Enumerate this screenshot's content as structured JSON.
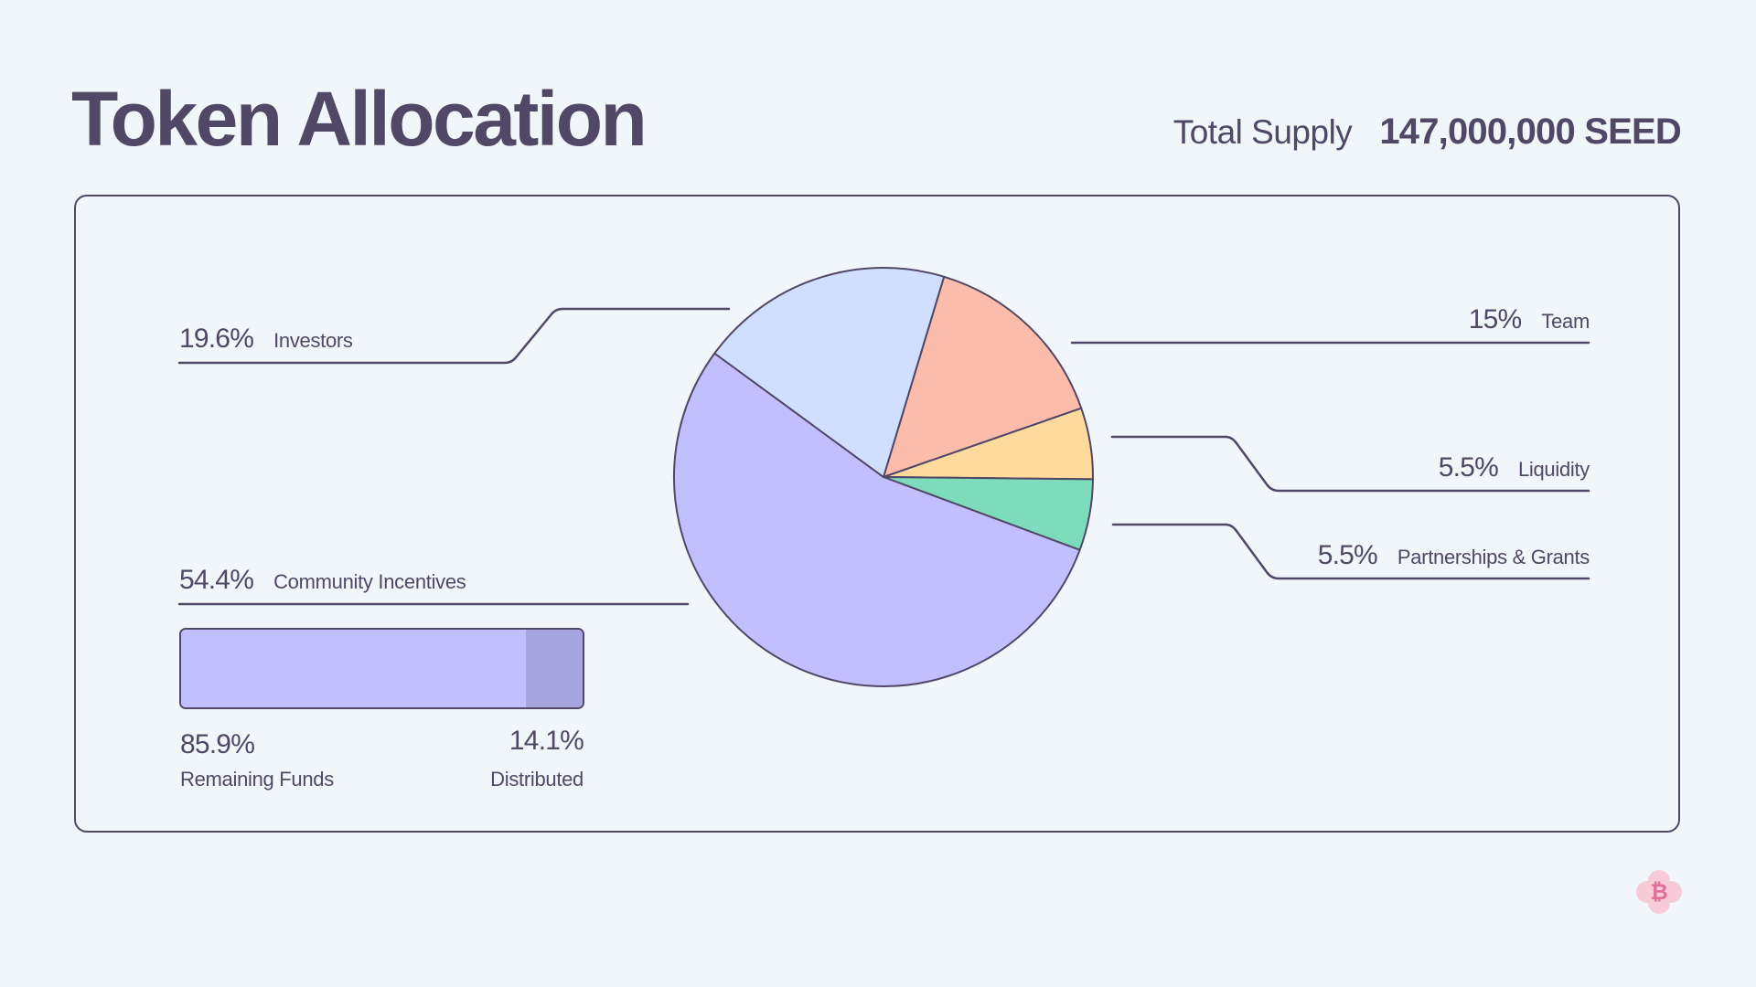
{
  "header": {
    "title": "Token Allocation",
    "total_supply_label": "Total Supply",
    "total_supply_value": "147,000,000 SEED"
  },
  "colors": {
    "text": "#514766",
    "background": "#f1f6fb",
    "community": "#c1bffd",
    "investors": "#d0dffe",
    "team": "#fcbcab",
    "liquidity": "#feda9c",
    "partnerships": "#7ddcbc",
    "distributed": "#a7a5e0",
    "logo_bg": "#f8cbd8",
    "logo_fg": "#e0709a"
  },
  "labels": {
    "investors": {
      "pct": "19.6%",
      "name": "Investors"
    },
    "team": {
      "pct": "15%",
      "name": "Team"
    },
    "liquidity": {
      "pct": "5.5%",
      "name": "Liquidity"
    },
    "partnerships": {
      "pct": "5.5%",
      "name": "Partnerships & Grants"
    },
    "community": {
      "pct": "54.4%",
      "name": "Community Incentives"
    }
  },
  "community_progress": {
    "remaining_pct": "85.9%",
    "remaining_label": "Remaining Funds",
    "distributed_pct": "14.1%",
    "distributed_label": "Distributed"
  },
  "logo": {
    "icon": "bitcoin-icon",
    "glyph": "₿"
  },
  "chart_data": {
    "type": "pie",
    "title": "Token Allocation",
    "subtitle": "Total Supply 147,000,000 SEED",
    "categories": [
      "Team",
      "Liquidity",
      "Partnerships & Grants",
      "Community Incentives",
      "Investors"
    ],
    "values": [
      15,
      5.5,
      5.5,
      54.4,
      19.6
    ],
    "colors": [
      "#fcbcab",
      "#feda9c",
      "#7ddcbc",
      "#c1bffd",
      "#d0dffe"
    ],
    "start_angle_deg": 16.8,
    "direction": "clockwise",
    "legend": "callout labels",
    "sub_chart": {
      "type": "bar",
      "title": "Community Incentives",
      "categories": [
        "Remaining Funds",
        "Distributed"
      ],
      "values": [
        85.9,
        14.1
      ],
      "colors": [
        "#c1bffd",
        "#a7a5e0"
      ]
    }
  }
}
